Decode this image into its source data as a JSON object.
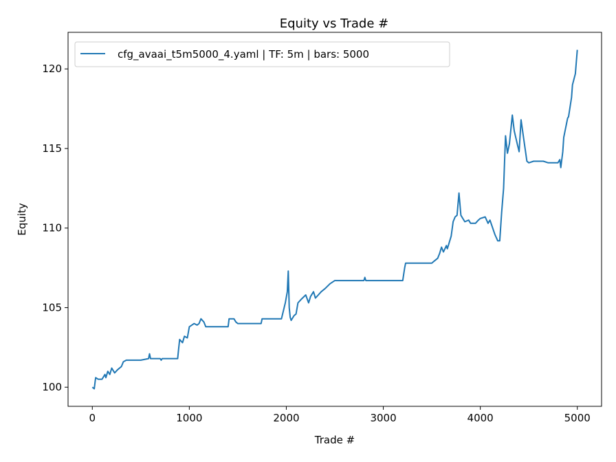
{
  "chart_data": {
    "type": "line",
    "title": "Equity vs Trade #",
    "xlabel": "Trade #",
    "ylabel": "Equity",
    "xlim": [
      -250,
      5250
    ],
    "ylim": [
      98.8,
      122.3
    ],
    "xticks": [
      0,
      1000,
      2000,
      3000,
      4000,
      5000
    ],
    "yticks": [
      100,
      105,
      110,
      115,
      120
    ],
    "grid": false,
    "legend_position": "top-left",
    "colors": {
      "series": "#1f77b4"
    },
    "series": [
      {
        "name": "cfg_avaai_t5m5000_4.yaml | TF: 5m | bars: 5000",
        "x": [
          0,
          20,
          30,
          35,
          60,
          100,
          130,
          140,
          160,
          180,
          200,
          230,
          260,
          300,
          320,
          350,
          400,
          500,
          580,
          590,
          600,
          700,
          710,
          720,
          880,
          890,
          900,
          930,
          950,
          980,
          1000,
          1050,
          1080,
          1100,
          1120,
          1150,
          1170,
          1200,
          1400,
          1410,
          1460,
          1480,
          1500,
          1600,
          1740,
          1750,
          1760,
          1950,
          1970,
          1990,
          2010,
          2020,
          2030,
          2040,
          2050,
          2080,
          2100,
          2120,
          2150,
          2200,
          2230,
          2250,
          2280,
          2300,
          2330,
          2360,
          2400,
          2450,
          2500,
          2520,
          2550,
          2800,
          2810,
          2820,
          3200,
          3220,
          3230,
          3400,
          3500,
          3520,
          3560,
          3580,
          3600,
          3620,
          3650,
          3660,
          3700,
          3720,
          3740,
          3760,
          3780,
          3800,
          3840,
          3880,
          3900,
          3950,
          3980,
          4000,
          4050,
          4080,
          4100,
          4150,
          4180,
          4200,
          4220,
          4240,
          4260,
          4280,
          4300,
          4330,
          4350,
          4380,
          4400,
          4420,
          4450,
          4480,
          4500,
          4550,
          4600,
          4650,
          4700,
          4800,
          4820,
          4830,
          4850,
          4860,
          4880,
          4900,
          4910,
          4940,
          4950,
          4980,
          5000
        ],
        "values": [
          100.0,
          99.9,
          100.4,
          100.6,
          100.5,
          100.5,
          100.8,
          100.6,
          101.0,
          100.8,
          101.2,
          100.9,
          101.1,
          101.3,
          101.6,
          101.7,
          101.7,
          101.7,
          101.8,
          102.1,
          101.8,
          101.8,
          101.7,
          101.8,
          101.8,
          102.4,
          103.0,
          102.8,
          103.2,
          103.1,
          103.8,
          104.0,
          103.9,
          104.0,
          104.3,
          104.1,
          103.8,
          103.8,
          103.8,
          104.3,
          104.3,
          104.1,
          104.0,
          104.0,
          104.0,
          104.3,
          104.3,
          104.3,
          104.8,
          105.3,
          106.0,
          107.3,
          105.0,
          104.4,
          104.2,
          104.5,
          104.6,
          105.3,
          105.5,
          105.8,
          105.3,
          105.7,
          106.0,
          105.6,
          105.8,
          106.0,
          106.2,
          106.5,
          106.7,
          106.7,
          106.7,
          106.7,
          106.9,
          106.7,
          106.7,
          107.5,
          107.8,
          107.8,
          107.8,
          107.9,
          108.1,
          108.4,
          108.8,
          108.5,
          108.9,
          108.7,
          109.5,
          110.4,
          110.7,
          110.8,
          112.2,
          110.8,
          110.4,
          110.5,
          110.3,
          110.3,
          110.5,
          110.6,
          110.7,
          110.3,
          110.5,
          109.6,
          109.2,
          109.2,
          111.0,
          112.5,
          115.8,
          114.7,
          115.3,
          117.1,
          116.1,
          115.3,
          114.8,
          116.8,
          115.5,
          114.2,
          114.1,
          114.2,
          114.2,
          114.2,
          114.1,
          114.1,
          114.3,
          113.8,
          114.8,
          115.7,
          116.3,
          116.9,
          117.0,
          118.2,
          119.0,
          119.7,
          121.2
        ]
      }
    ]
  }
}
